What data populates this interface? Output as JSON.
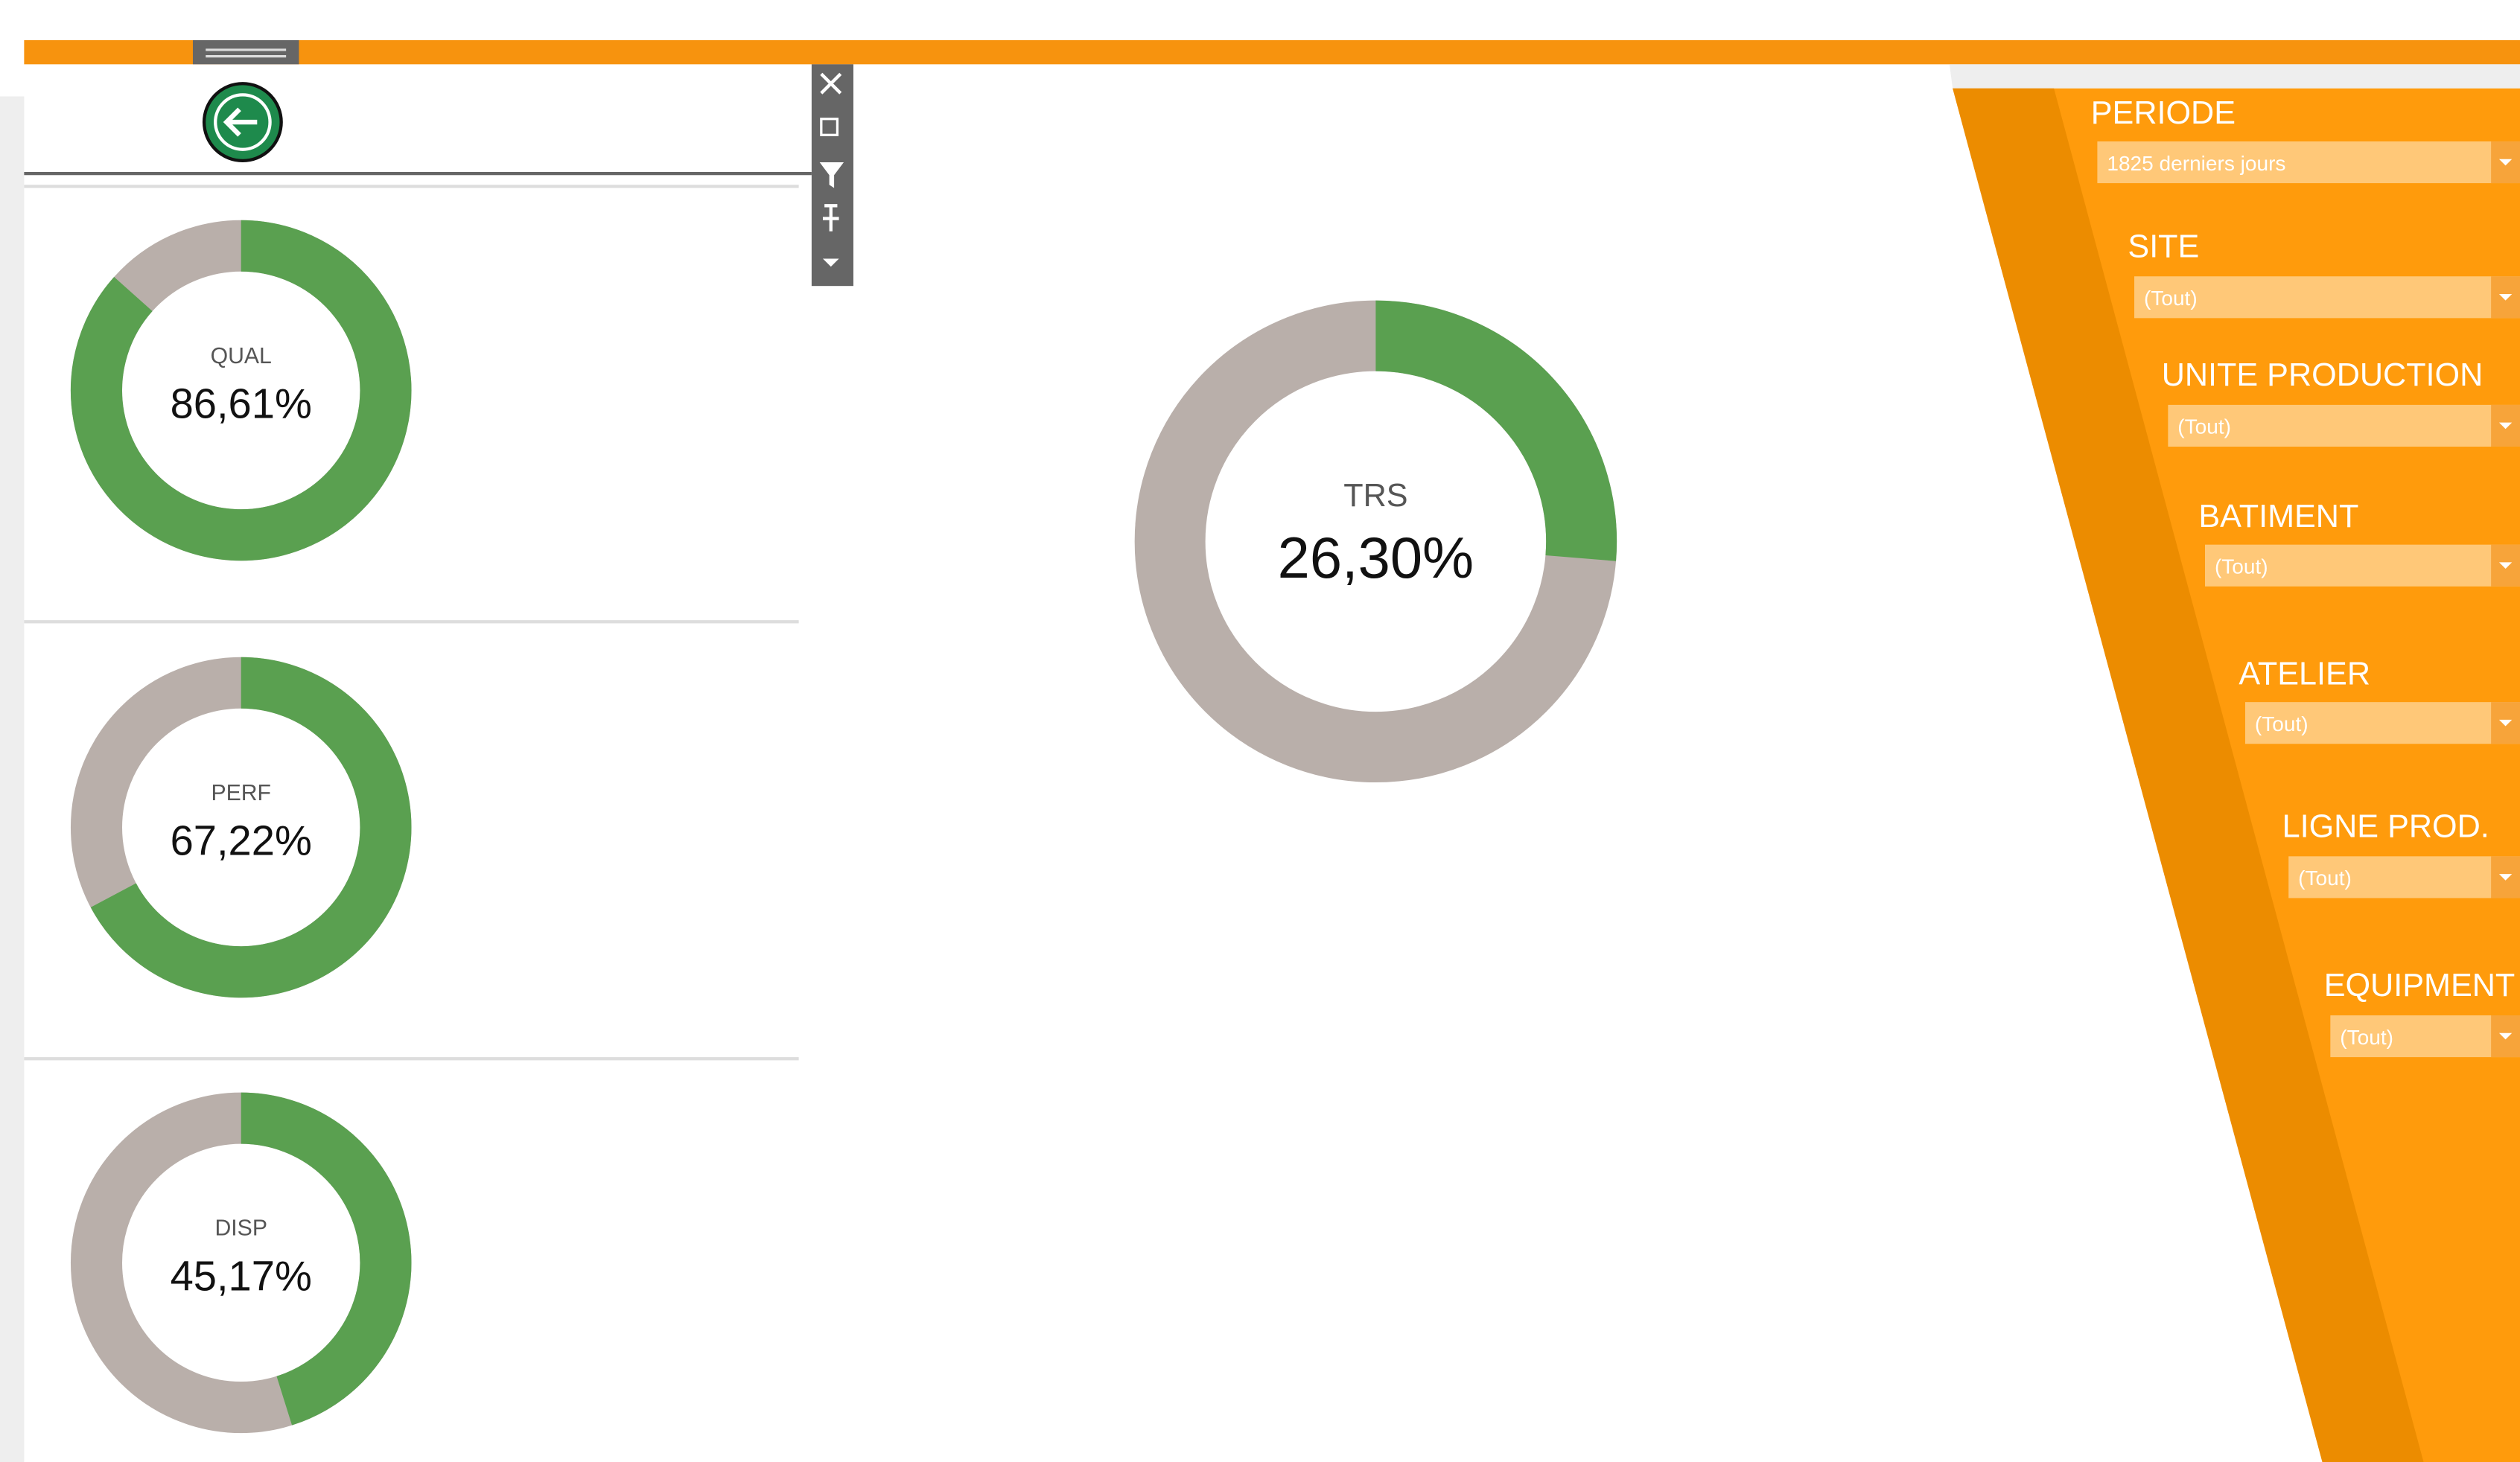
{
  "gauges": [
    {
      "label": "QUAL",
      "value": 86.61,
      "value_label": "86,61%"
    },
    {
      "label": "PERF",
      "value": 67.22,
      "value_label": "67,22%"
    },
    {
      "label": "DISP",
      "value": 45.17,
      "value_label": "45,17%"
    },
    {
      "label": "TRS",
      "value": 26.3,
      "value_label": "26,30%"
    }
  ],
  "filters": [
    {
      "label": "PERIODE",
      "selection": "1825 derniers jours"
    },
    {
      "label": "SITE",
      "selection": "(Tout)"
    },
    {
      "label": "UNITE PRODUCTION",
      "selection": "(Tout)"
    },
    {
      "label": "BATIMENT",
      "selection": "(Tout)"
    },
    {
      "label": "ATELIER",
      "selection": "(Tout)"
    },
    {
      "label": "LIGNE PROD.",
      "selection": "(Tout)"
    },
    {
      "label": "EQUIPMENT",
      "selection": "(Tout)"
    }
  ]
}
